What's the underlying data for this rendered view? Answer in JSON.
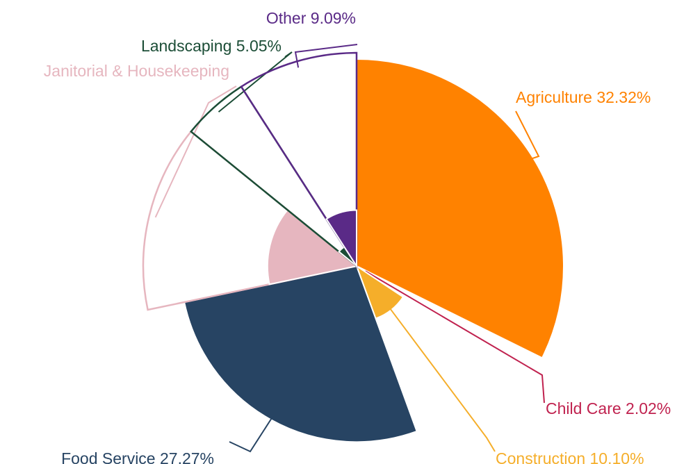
{
  "chart_data": {
    "type": "pie",
    "labels": [
      "Agriculture 32.32%",
      "Child Care 2.02%",
      "Construction 10.10%",
      "Food Service 27.27%",
      "Janitorial & Housekeeping",
      "Landscaping 5.05%",
      "Other 9.09%"
    ],
    "values": [
      32.32,
      2.02,
      10.1,
      27.27,
      14.15,
      5.05,
      9.09
    ],
    "radius_values": [
      100,
      5,
      27,
      85,
      43,
      11,
      27
    ],
    "outline_values": [
      null,
      null,
      null,
      null,
      103,
      103,
      103
    ],
    "rlim": [
      0,
      100
    ],
    "colors": [
      "#ff8200",
      "#c0224f",
      "#f5ae2a",
      "#274463",
      "#e6b6bf",
      "#1b4d36",
      "#5a2a87"
    ]
  }
}
